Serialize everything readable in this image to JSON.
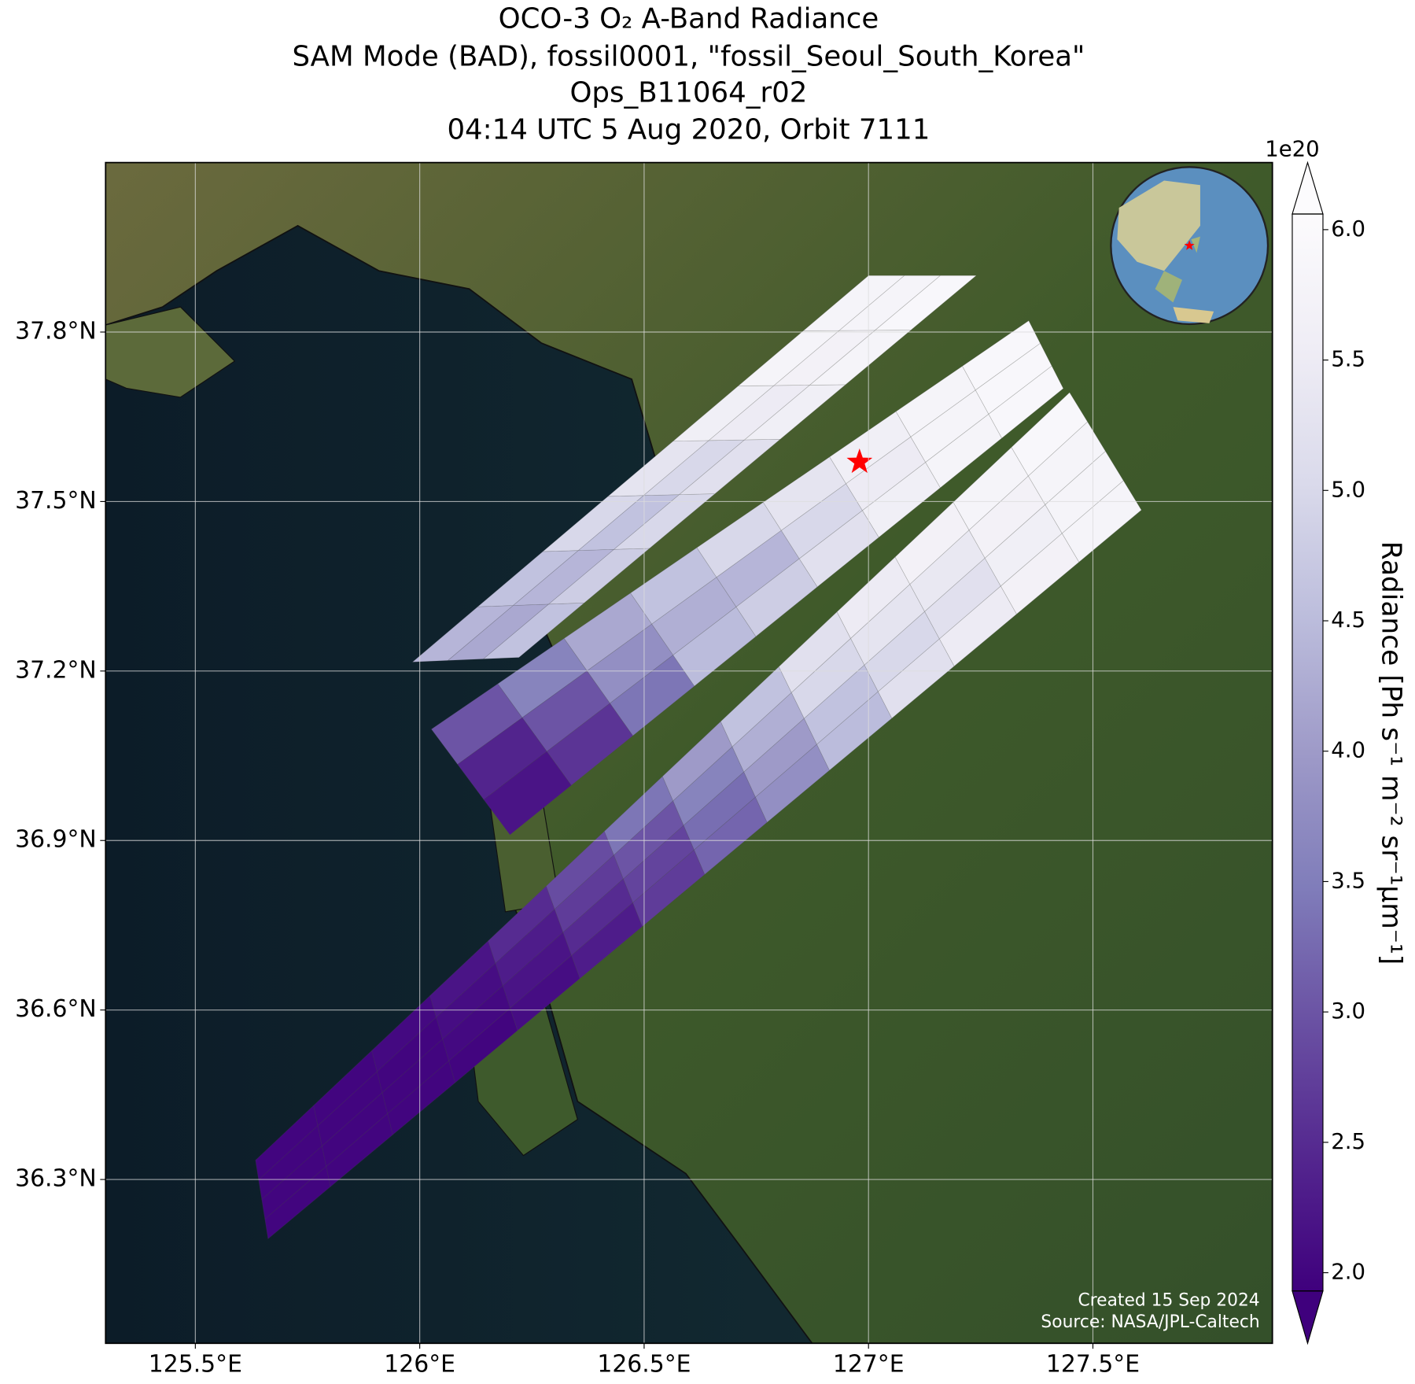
{
  "chart_data": {
    "type": "swath_map",
    "title": [
      "OCO-3 O₂ A-Band Radiance",
      "SAM Mode (BAD), fossil0001, \"fossil_Seoul_South_Korea\"",
      "Ops_B11064_r02",
      "04:14 UTC 5 Aug 2020, Orbit 7111"
    ],
    "xlim": [
      125.3,
      127.9
    ],
    "ylim": [
      36.01,
      38.1
    ],
    "xticks": [
      {
        "value": 125.5,
        "label": "125.5°E"
      },
      {
        "value": 126,
        "label": "126°E"
      },
      {
        "value": 126.5,
        "label": "126.5°E"
      },
      {
        "value": 127,
        "label": "127°E"
      },
      {
        "value": 127.5,
        "label": "127.5°E"
      }
    ],
    "yticks": [
      {
        "value": 36.3,
        "label": "36.3°N"
      },
      {
        "value": 36.6,
        "label": "36.6°N"
      },
      {
        "value": 36.9,
        "label": "36.9°N"
      },
      {
        "value": 37.2,
        "label": "37.2°N"
      },
      {
        "value": 37.5,
        "label": "37.5°N"
      },
      {
        "value": 37.8,
        "label": "37.8°N"
      }
    ],
    "grid": true,
    "colorbar": {
      "label": "Radiance [Ph s⁻¹ m⁻² sr⁻¹μm⁻¹]",
      "offset_label": "1e20",
      "clim": [
        1.93,
        6.06
      ],
      "extend": "both",
      "ticks": [
        {
          "value": 2,
          "label": "2.0"
        },
        {
          "value": 2.5,
          "label": "2.5"
        },
        {
          "value": 3,
          "label": "3.0"
        },
        {
          "value": 3.5,
          "label": "3.5"
        },
        {
          "value": 4,
          "label": "4.0"
        },
        {
          "value": 4.5,
          "label": "4.5"
        },
        {
          "value": 5,
          "label": "5.0"
        },
        {
          "value": 5.5,
          "label": "5.5"
        },
        {
          "value": 6,
          "label": "6.0"
        }
      ],
      "colors": [
        "#3f007d",
        "#54278f",
        "#6a51a3",
        "#807dba",
        "#9e9ac8",
        "#bcbddc",
        "#dadaeb",
        "#efedf5",
        "#fcfbfd"
      ]
    },
    "swaths": [
      {
        "corners": {
          "sw_left": [
            125.984,
            37.216
          ],
          "sw_right": [
            126.221,
            37.224
          ],
          "ne_left": [
            127.0,
            37.9
          ],
          "ne_right": [
            127.24,
            37.9
          ]
        },
        "values": [
          [
            4.4,
            4.2,
            4.6
          ],
          [
            4.6,
            4.4,
            4.8
          ],
          [
            5.0,
            4.6,
            5.0
          ],
          [
            5.3,
            5.0,
            5.2
          ],
          [
            5.6,
            5.5,
            5.6
          ],
          [
            5.8,
            5.7,
            5.8
          ],
          [
            5.8,
            5.8,
            5.9
          ]
        ]
      },
      {
        "corners": {
          "sw_left": [
            126.026,
            37.097
          ],
          "sw_right": [
            126.201,
            36.91
          ],
          "ne_left": [
            127.357,
            37.82
          ],
          "ne_right": [
            127.434,
            37.7
          ]
        },
        "values": [
          [
            3.0,
            2.4,
            2.2
          ],
          [
            3.6,
            3.0,
            2.6
          ],
          [
            4.2,
            3.8,
            3.4
          ],
          [
            4.6,
            4.3,
            4.5
          ],
          [
            5.0,
            4.4,
            4.8
          ],
          [
            5.3,
            5.0,
            5.2
          ],
          [
            5.6,
            5.5,
            5.6
          ],
          [
            5.8,
            5.8,
            5.8
          ],
          [
            5.9,
            5.9,
            5.9
          ]
        ]
      },
      {
        "corners": {
          "sw_left": [
            125.634,
            36.334
          ],
          "sw_right": [
            125.662,
            36.195
          ],
          "ne_left": [
            127.448,
            37.693
          ],
          "ne_right": [
            127.608,
            37.485
          ]
        },
        "values": [
          [
            2.0,
            2.0,
            2.0,
            2.0
          ],
          [
            2.0,
            2.0,
            2.0,
            2.0
          ],
          [
            2.05,
            2.0,
            2.0,
            2.0
          ],
          [
            2.2,
            2.1,
            2.05,
            2.0
          ],
          [
            2.5,
            2.3,
            2.2,
            2.1
          ],
          [
            2.9,
            2.7,
            2.5,
            2.3
          ],
          [
            3.4,
            3.0,
            2.8,
            2.7
          ],
          [
            4.0,
            3.6,
            3.3,
            3.2
          ],
          [
            4.6,
            4.3,
            4.0,
            3.8
          ],
          [
            5.2,
            5.0,
            4.6,
            4.5
          ],
          [
            5.5,
            5.3,
            5.0,
            5.2
          ],
          [
            5.7,
            5.4,
            5.2,
            5.5
          ],
          [
            5.8,
            5.7,
            5.6,
            5.7
          ],
          [
            5.9,
            5.8,
            5.8,
            5.8
          ]
        ]
      }
    ],
    "target": {
      "lon": 126.98,
      "lat": 37.57,
      "color": "#ff0000"
    },
    "credits": [
      "Created 15 Sep 2024",
      "Source: NASA/JPL-Caltech"
    ]
  }
}
